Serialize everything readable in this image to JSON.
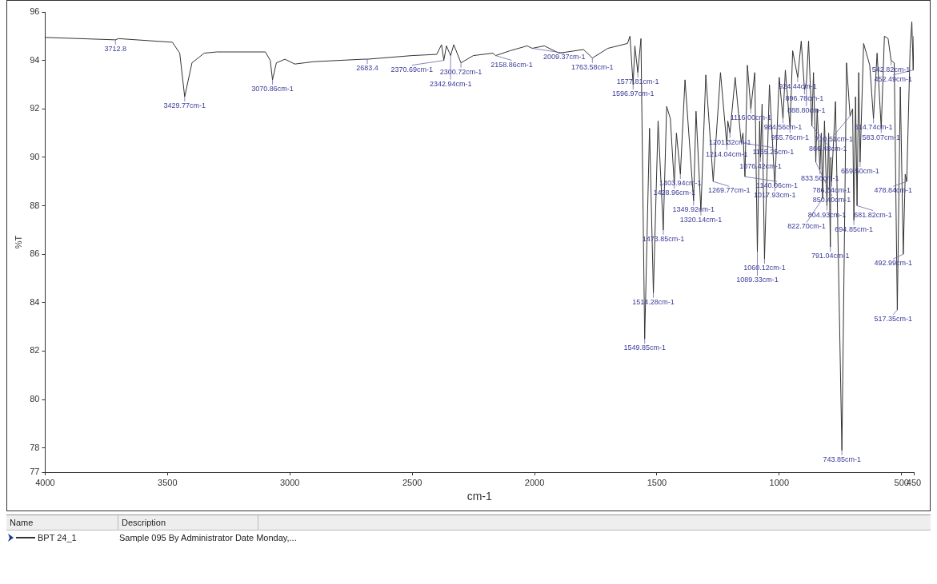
{
  "chart_data": {
    "type": "line",
    "xlabel": "cm-1",
    "ylabel": "%T",
    "xlim": [
      4000,
      450
    ],
    "xticks": [
      4000,
      3500,
      3000,
      2500,
      2000,
      1500,
      1000,
      500,
      450
    ],
    "ylim": [
      77,
      96
    ],
    "yticks": [
      77,
      78,
      80,
      82,
      84,
      86,
      88,
      90,
      92,
      94,
      96
    ],
    "grid": false,
    "legend": "bottom",
    "marker": "none",
    "line_style": "solid",
    "series": [
      {
        "name": "BPT 24_1",
        "color": "#333333",
        "x": [
          4000,
          3712.8,
          3700,
          3480,
          3450,
          3429.77,
          3400,
          3350,
          3300,
          3100,
          3080,
          3070.86,
          3055,
          3020,
          2980,
          2900,
          2700,
          2683.4,
          2500,
          2400,
          2380,
          2370.69,
          2360,
          2342.94,
          2330,
          2300.72,
          2250,
          2170,
          2158.86,
          2100,
          2030,
          2009.37,
          1960,
          1900,
          1800,
          1763.58,
          1700,
          1620,
          1610,
          1596.97,
          1590,
          1577.81,
          1565,
          1549.85,
          1530,
          1514.28,
          1495,
          1473.85,
          1460,
          1445,
          1428.96,
          1420,
          1403.94,
          1385,
          1349.92,
          1340,
          1320.14,
          1300,
          1269.77,
          1240,
          1214.04,
          1210,
          1201.32,
          1180,
          1155.25,
          1148,
          1140.06,
          1130,
          1116,
          1100,
          1089.33,
          1080,
          1076.42,
          1070,
          1060.12,
          1040,
          1017.93,
          1000,
          984.56,
          975,
          955.76,
          945,
          924.44,
          910,
          896.78,
          888.8,
          880,
          866.48,
          860,
          850.4,
          845,
          833.56,
          828,
          822.7,
          815,
          804.93,
          798,
          791.04,
          789,
          786.04,
          770,
          743.85,
          725,
          710.51,
          700,
          694.85,
          688,
          681.82,
          675,
          669.5,
          655,
          630,
          614.74,
          600,
          583.07,
          570,
          555,
          542.82,
          530,
          517.35,
          505,
          492.99,
          485,
          478.84,
          465,
          458,
          452.49,
          450
        ],
        "values": [
          94.95,
          94.85,
          94.9,
          94.75,
          94.3,
          92.5,
          93.9,
          94.3,
          94.35,
          94.35,
          94.0,
          93.2,
          93.9,
          94.05,
          93.85,
          93.95,
          94.05,
          94.05,
          94.2,
          94.25,
          94.65,
          94.0,
          94.6,
          94.2,
          94.65,
          93.9,
          94.2,
          94.3,
          94.2,
          94.4,
          94.6,
          94.5,
          94.6,
          94.3,
          94.45,
          94.1,
          94.5,
          94.7,
          95.0,
          93.0,
          94.6,
          93.5,
          94.9,
          82.5,
          91.2,
          84.4,
          91.5,
          87.0,
          92.1,
          91.6,
          88.9,
          91.0,
          89.3,
          93.2,
          88.2,
          91.9,
          87.8,
          93.4,
          89.0,
          93.5,
          90.5,
          91.5,
          91.0,
          93.3,
          90.6,
          91.0,
          89.2,
          93.8,
          92.0,
          93.5,
          86.1,
          91.5,
          90.0,
          92.2,
          85.8,
          93.0,
          88.8,
          93.3,
          91.6,
          93.6,
          91.2,
          94.4,
          93.3,
          94.8,
          92.8,
          93.1,
          94.8,
          91.3,
          93.5,
          89.8,
          92.0,
          89.5,
          91.0,
          88.3,
          91.5,
          88.0,
          91.0,
          86.3,
          90.0,
          89.0,
          92.3,
          77.9,
          93.9,
          91.7,
          92.0,
          87.4,
          92.5,
          88.0,
          93.5,
          89.8,
          94.7,
          93.8,
          91.6,
          94.3,
          91.2,
          95.0,
          94.9,
          94.0,
          93.9,
          83.7,
          92.9,
          86.0,
          89.3,
          89.0,
          94.5,
          95.6,
          93.6,
          95.0
        ]
      }
    ],
    "annotations": [
      {
        "text": "3712.8",
        "x": 3712.8,
        "y": 94.85
      },
      {
        "text": "3429.77cm-1",
        "x": 3429.77,
        "y": 92.5
      },
      {
        "text": "3070.86cm-1",
        "x": 3070.86,
        "y": 93.2
      },
      {
        "text": "2683.4",
        "x": 2683.4,
        "y": 94.05
      },
      {
        "text": "2370.69cm-1",
        "x": 2370.69,
        "y": 94.0
      },
      {
        "text": "2342.94cm-1",
        "x": 2342.94,
        "y": 94.2
      },
      {
        "text": "2300.72cm-1",
        "x": 2300.72,
        "y": 93.9
      },
      {
        "text": "2158.86cm-1",
        "x": 2158.86,
        "y": 94.2
      },
      {
        "text": "2009.37cm-1",
        "x": 2009.37,
        "y": 94.5
      },
      {
        "text": "1763.58cm-1",
        "x": 1763.58,
        "y": 94.1
      },
      {
        "text": "1596.97cm-1",
        "x": 1596.97,
        "y": 93.0
      },
      {
        "text": "1577.81cm-1",
        "x": 1577.81,
        "y": 93.5
      },
      {
        "text": "1549.85cm-1",
        "x": 1549.85,
        "y": 82.5
      },
      {
        "text": "1514.28cm-1",
        "x": 1514.28,
        "y": 84.4
      },
      {
        "text": "1473.85cm-1",
        "x": 1473.85,
        "y": 87.0
      },
      {
        "text": "1428.96cm-1",
        "x": 1428.96,
        "y": 88.9
      },
      {
        "text": "1403.94cm-1",
        "x": 1403.94,
        "y": 89.3
      },
      {
        "text": "1349.92cm-1",
        "x": 1349.92,
        "y": 88.2
      },
      {
        "text": "1320.14cm-1",
        "x": 1320.14,
        "y": 87.8
      },
      {
        "text": "1269.77cm-1",
        "x": 1269.77,
        "y": 89.0
      },
      {
        "text": "1214.04cm-1",
        "x": 1214.04,
        "y": 90.5
      },
      {
        "text": "1201.32cm-1",
        "x": 1201.32,
        "y": 91.0
      },
      {
        "text": "1155.25cm-1",
        "x": 1155.25,
        "y": 90.6
      },
      {
        "text": "1140.06cm-1",
        "x": 1140.06,
        "y": 89.2
      },
      {
        "text": "1116.00cm-1",
        "x": 1116,
        "y": 92.0
      },
      {
        "text": "1089.33cm-1",
        "x": 1089.33,
        "y": 86.1
      },
      {
        "text": "1076.42cm-1",
        "x": 1076.42,
        "y": 90.0
      },
      {
        "text": "1060.12cm-1",
        "x": 1060.12,
        "y": 85.8
      },
      {
        "text": "1017.93cm-1",
        "x": 1017.93,
        "y": 88.8
      },
      {
        "text": "984.56cm-1",
        "x": 984.56,
        "y": 91.6
      },
      {
        "text": "955.76cm-1",
        "x": 955.76,
        "y": 91.2
      },
      {
        "text": "924.44cm-1",
        "x": 924.44,
        "y": 93.3
      },
      {
        "text": "896.78cm-1",
        "x": 896.78,
        "y": 92.8
      },
      {
        "text": "888.80cm-1",
        "x": 888.8,
        "y": 93.1
      },
      {
        "text": "866.48cm-1",
        "x": 866.48,
        "y": 91.3
      },
      {
        "text": "850.40cm-1",
        "x": 850.4,
        "y": 89.8
      },
      {
        "text": "833.56cm-1",
        "x": 833.56,
        "y": 89.5
      },
      {
        "text": "822.70cm-1",
        "x": 822.7,
        "y": 88.3
      },
      {
        "text": "804.93cm-1",
        "x": 804.93,
        "y": 88.0
      },
      {
        "text": "791.04cm-1",
        "x": 791.04,
        "y": 86.3
      },
      {
        "text": "786.04cm-1",
        "x": 786.04,
        "y": 89.0
      },
      {
        "text": "743.85cm-1",
        "x": 743.85,
        "y": 77.9
      },
      {
        "text": "710.51cm-1",
        "x": 710.51,
        "y": 91.7
      },
      {
        "text": "694.85cm-1",
        "x": 694.85,
        "y": 87.4
      },
      {
        "text": "681.82cm-1",
        "x": 681.82,
        "y": 88.0
      },
      {
        "text": "669.50cm-1",
        "x": 669.5,
        "y": 89.8
      },
      {
        "text": "614.74cm-1",
        "x": 614.74,
        "y": 91.6
      },
      {
        "text": "583.07cm-1",
        "x": 583.07,
        "y": 91.2
      },
      {
        "text": "542.82cm-1",
        "x": 542.82,
        "y": 94.0
      },
      {
        "text": "517.35cm-1",
        "x": 517.35,
        "y": 83.7
      },
      {
        "text": "492.99cm-1",
        "x": 492.99,
        "y": 86.0
      },
      {
        "text": "478.84cm-1",
        "x": 478.84,
        "y": 89.0
      },
      {
        "text": "452.49cm-1",
        "x": 452.49,
        "y": 93.6
      },
      "Name",
      "Description",
      "Sample 095 By Administrator Date Monday,..."
    ]
  }
}
